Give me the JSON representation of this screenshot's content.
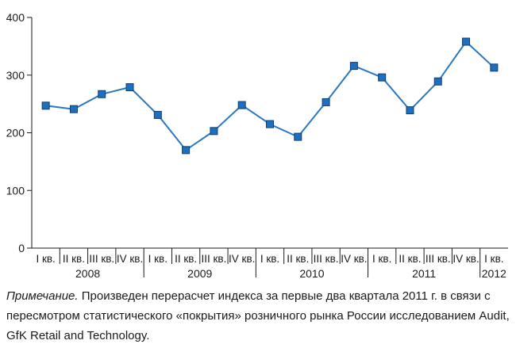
{
  "chart_data": {
    "type": "line",
    "categories": [
      "I кв.",
      "II кв.",
      "III кв.",
      "IV кв.",
      "I кв.",
      "II кв.",
      "III кв.",
      "IV кв.",
      "I кв.",
      "II кв.",
      "III кв.",
      "IV кв.",
      "I кв.",
      "II кв.",
      "III кв.",
      "IV кв.",
      "I кв."
    ],
    "years": [
      {
        "label": "2008",
        "count": 4
      },
      {
        "label": "2009",
        "count": 4
      },
      {
        "label": "2010",
        "count": 4
      },
      {
        "label": "2011",
        "count": 4
      },
      {
        "label": "2012",
        "count": 1
      }
    ],
    "series": [
      {
        "values": [
          247,
          241,
          267,
          279,
          231,
          170,
          203,
          248,
          215,
          193,
          253,
          316,
          296,
          239,
          289,
          358,
          313
        ]
      }
    ],
    "ylim": [
      0,
      400
    ],
    "yticks": [
      0,
      100,
      200,
      300,
      400
    ],
    "title": "",
    "xlabel": "",
    "ylabel": "",
    "grid": false,
    "colors": {
      "line": "#2a78c2",
      "marker": "#1f6fbf",
      "marker_edge": "#0d3f75",
      "axis": "#1a1a1a"
    }
  },
  "note": {
    "label": "Примечание.",
    "text": " Произведен перерасчет индекса за первые два квартала 2011 г. в связи с пересмотром статистического «покрытия» розничного рынка России исследованием Audit, GfK Retail and Technology."
  }
}
